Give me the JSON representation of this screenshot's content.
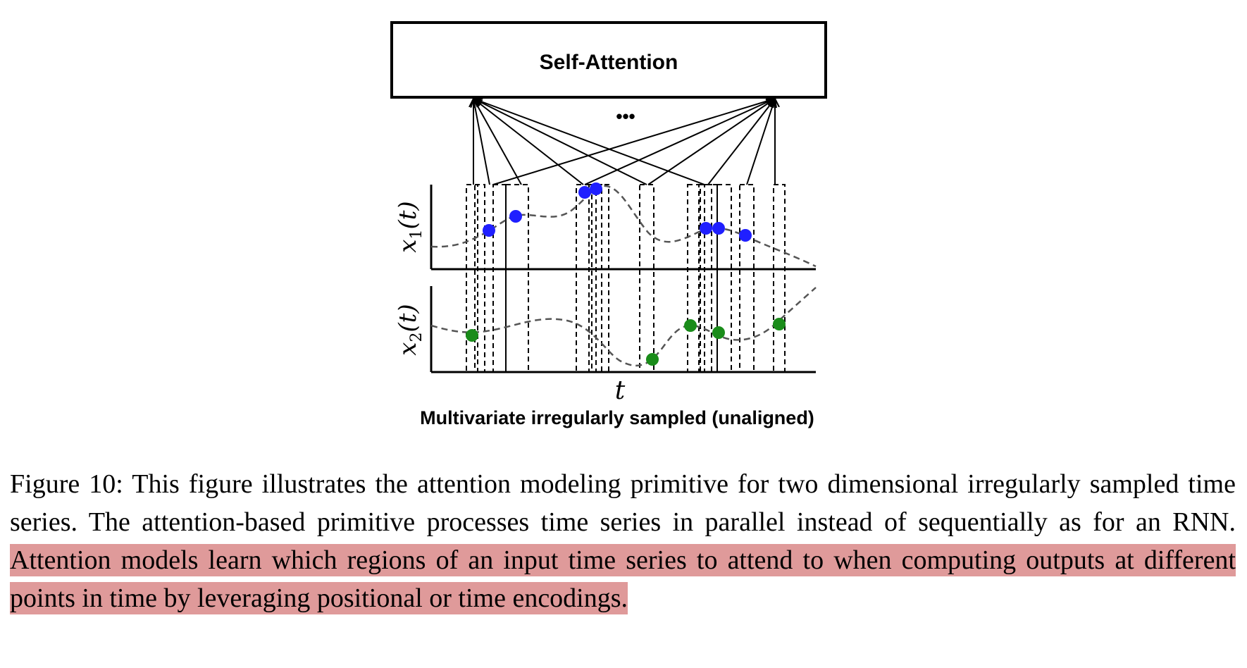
{
  "figure": {
    "block_label": "Self-Attention",
    "ellipsis": "•••",
    "y_axis_top": "x",
    "y_axis_top_sub": "1",
    "y_axis_bottom": "x",
    "y_axis_bottom_sub": "2",
    "y_axis_arg": "(t)",
    "x_axis_label": "t",
    "subtitle": "Multivariate irregularly sampled (unaligned)",
    "series_colors": {
      "x1": "#1f1fff",
      "x2": "#1a8c1a"
    }
  },
  "caption": {
    "label": "Figure 10:",
    "text_plain": "This figure illustrates the attention modeling primitive for two dimensional irregularly sampled time series. The attention-based primitive processes time series in parallel instead of sequentially as for an RNN.",
    "text_highlighted": "Attention models learn which regions of an input time series to attend to when computing outputs at different points in time by leveraging positional or time encodings."
  }
}
